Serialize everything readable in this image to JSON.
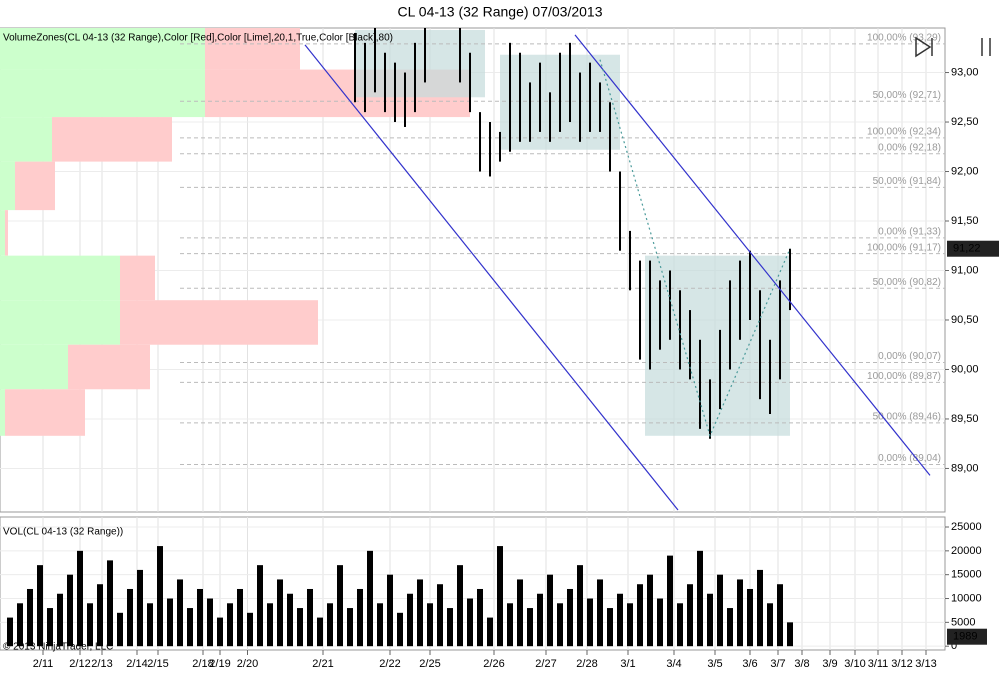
{
  "footer": "© 2013 NinjaTrader, LLC",
  "chart_data": [
    {
      "type": "hilo",
      "title": "CL 04-13 (32 Range)  07/03/2013",
      "indicator": "VolumeZones(CL 04-13 (32 Range),Color [Red],Color [Lime],20,1,True,Color [Black],80)",
      "color": "#000000",
      "x": [
        71,
        73,
        75,
        77,
        79,
        81,
        83,
        85,
        92,
        94,
        96,
        98,
        100,
        102,
        104,
        106,
        108,
        110,
        112,
        114,
        116,
        118,
        120,
        122,
        124,
        126,
        128,
        130,
        132,
        134,
        136,
        138,
        140,
        142,
        144,
        146,
        148,
        150,
        152,
        154,
        156,
        158
      ],
      "high": [
        93.4,
        93.3,
        93.45,
        93.2,
        93.1,
        93.0,
        93.3,
        93.45,
        93.45,
        93.2,
        92.6,
        92.5,
        92.4,
        93.3,
        93.2,
        92.9,
        93.1,
        92.8,
        93.2,
        93.3,
        93.0,
        93.1,
        92.9,
        92.7,
        92.0,
        91.4,
        91.1,
        91.1,
        90.9,
        91.0,
        90.8,
        90.6,
        90.3,
        89.9,
        90.4,
        90.9,
        91.1,
        91.2,
        90.8,
        90.3,
        90.9,
        91.22
      ],
      "low": [
        92.7,
        92.6,
        92.8,
        92.6,
        92.5,
        92.45,
        92.6,
        92.9,
        92.9,
        92.6,
        92.0,
        91.95,
        92.1,
        92.2,
        92.3,
        92.3,
        92.4,
        92.3,
        92.4,
        92.5,
        92.3,
        92.4,
        92.4,
        92.0,
        91.2,
        90.8,
        90.1,
        90.0,
        90.2,
        90.3,
        90.0,
        89.9,
        89.4,
        89.3,
        89.6,
        90.0,
        90.3,
        90.5,
        89.7,
        89.55,
        89.9,
        90.6
      ],
      "xlim": [
        0,
        189
      ],
      "xticks": [
        {
          "value": 8.6,
          "label": "2/11"
        },
        {
          "value": 16,
          "label": "2/12"
        },
        {
          "value": 20.4,
          "label": "2/13"
        },
        {
          "value": 27.4,
          "label": "2/14"
        },
        {
          "value": 31.6,
          "label": "2/15"
        },
        {
          "value": 40.6,
          "label": "2/18"
        },
        {
          "value": 44,
          "label": "2/19"
        },
        {
          "value": 49.5,
          "label": "2/20"
        },
        {
          "value": 64.6,
          "label": "2/21"
        },
        {
          "value": 78,
          "label": "2/22"
        },
        {
          "value": 86,
          "label": "2/25"
        },
        {
          "value": 98.8,
          "label": "2/26"
        },
        {
          "value": 109.2,
          "label": "2/27"
        },
        {
          "value": 117.4,
          "label": "2/28"
        },
        {
          "value": 125.6,
          "label": "3/1"
        },
        {
          "value": 134.8,
          "label": "3/4"
        },
        {
          "value": 143,
          "label": "3/5"
        },
        {
          "value": 150,
          "label": "3/6"
        },
        {
          "value": 155.6,
          "label": "3/7"
        },
        {
          "value": 160.4,
          "label": "3/8"
        },
        {
          "value": 166,
          "label": "3/9"
        },
        {
          "value": 171,
          "label": "3/10"
        },
        {
          "value": 175.6,
          "label": "3/11"
        },
        {
          "value": 180.4,
          "label": "3/12"
        },
        {
          "value": 185.2,
          "label": "3/13"
        }
      ],
      "ylim": [
        88.56,
        93.45
      ],
      "yticks": [
        {
          "value": 89,
          "label": "89,00"
        },
        {
          "value": 89.5,
          "label": "89,50"
        },
        {
          "value": 90,
          "label": "90,00"
        },
        {
          "value": 90.5,
          "label": "90,50"
        },
        {
          "value": 91,
          "label": "91,00"
        },
        {
          "value": 91.5,
          "label": "91,50"
        },
        {
          "value": 92,
          "label": "92,00"
        },
        {
          "value": 92.5,
          "label": "92,50"
        },
        {
          "value": 93,
          "label": "93,00"
        }
      ],
      "grid": true,
      "current": {
        "value": 91.22,
        "label": "91,22"
      },
      "volume_zones": {
        "price_edges": [
          93.45,
          93.03,
          92.55,
          92.1,
          91.61,
          91.15,
          90.7,
          90.25,
          89.8,
          89.33
        ],
        "up": [
          20500,
          20500,
          5200,
          1500,
          500,
          12000,
          12000,
          6800,
          500
        ],
        "down": [
          9500,
          26500,
          12000,
          4000,
          300,
          3500,
          19800,
          8200,
          8000
        ],
        "up_color": "#ccffcc",
        "down_color": "#ffcccc"
      },
      "levels": [
        {
          "value": 93.29,
          "label": "100,00% (93,29)"
        },
        {
          "value": 92.71,
          "label": "50,00% (92,71)"
        },
        {
          "value": 92.34,
          "label": "100,00% (92,34)"
        },
        {
          "value": 92.18,
          "label": "0,00% (92,18)"
        },
        {
          "value": 91.84,
          "label": "50,00% (91,84)"
        },
        {
          "value": 91.33,
          "label": "0,00% (91,33)"
        },
        {
          "value": 91.17,
          "label": "100,00% (91,17)"
        },
        {
          "value": 90.82,
          "label": "50,00% (90,82)"
        },
        {
          "value": 90.07,
          "label": "0,00% (90,07)"
        },
        {
          "value": 89.87,
          "label": "100,00% (89,87)"
        },
        {
          "value": 89.46,
          "label": "50,00% (89,46)"
        },
        {
          "value": 89.04,
          "label": "0,00% (89,04)"
        }
      ],
      "boxes": [
        {
          "x": [
            71,
            97
          ],
          "y": [
            92.75,
            93.43
          ]
        },
        {
          "x": [
            100,
            124
          ],
          "y": [
            92.22,
            93.18
          ]
        },
        {
          "x": [
            129,
            158
          ],
          "y": [
            89.33,
            91.15
          ]
        }
      ],
      "box_color": "#c5dcdc",
      "trend_lines": [
        {
          "x": [
            61,
            135.6
          ],
          "y": [
            93.28,
            88.58
          ],
          "color": "#3333cc"
        },
        {
          "x": [
            115,
            186
          ],
          "y": [
            93.38,
            88.93
          ],
          "color": "#3333cc"
        },
        {
          "x": [
            120,
            142,
            158
          ],
          "y": [
            93.13,
            89.33,
            91.22
          ],
          "color": "#4a9a9a"
        }
      ]
    },
    {
      "type": "bar",
      "indicator": "VOL(CL 04-13 (32 Range))",
      "color": "#000000",
      "x": [
        2,
        4,
        6,
        8,
        10,
        12,
        14,
        16,
        18,
        20,
        22,
        24,
        26,
        28,
        30,
        32,
        34,
        36,
        38,
        40,
        42,
        44,
        46,
        48,
        50,
        52,
        54,
        56,
        58,
        60,
        62,
        64,
        66,
        68,
        70,
        72,
        74,
        76,
        78,
        80,
        82,
        84,
        86,
        88,
        90,
        92,
        94,
        96,
        98,
        100,
        102,
        104,
        106,
        108,
        110,
        112,
        114,
        116,
        118,
        120,
        122,
        124,
        126,
        128,
        130,
        132,
        134,
        136,
        138,
        140,
        142,
        144,
        146,
        148,
        150,
        152,
        154,
        156,
        158
      ],
      "values": [
        6000,
        9000,
        12000,
        17000,
        8000,
        11000,
        15000,
        20000,
        9000,
        13000,
        18000,
        7000,
        12000,
        16000,
        9000,
        21000,
        10000,
        14000,
        8000,
        12000,
        10000,
        6000,
        9000,
        12000,
        7000,
        17000,
        9000,
        14000,
        11000,
        8000,
        12000,
        6000,
        9000,
        17000,
        8000,
        12000,
        20000,
        9000,
        15000,
        7000,
        11000,
        14000,
        9000,
        13000,
        8000,
        17000,
        10000,
        12000,
        6000,
        21000,
        9000,
        14000,
        8000,
        11000,
        15000,
        9000,
        12000,
        17000,
        10000,
        14000,
        8000,
        11000,
        9000,
        13000,
        15000,
        10000,
        19000,
        9000,
        13000,
        20000,
        11000,
        15000,
        8000,
        14000,
        12000,
        16000,
        9000,
        13000,
        5000
      ],
      "xlim": [
        0,
        189
      ],
      "ylim": [
        -800,
        27100
      ],
      "yticks": [
        0,
        5000,
        10000,
        15000,
        20000,
        25000
      ],
      "grid": true,
      "current": 1989
    }
  ]
}
